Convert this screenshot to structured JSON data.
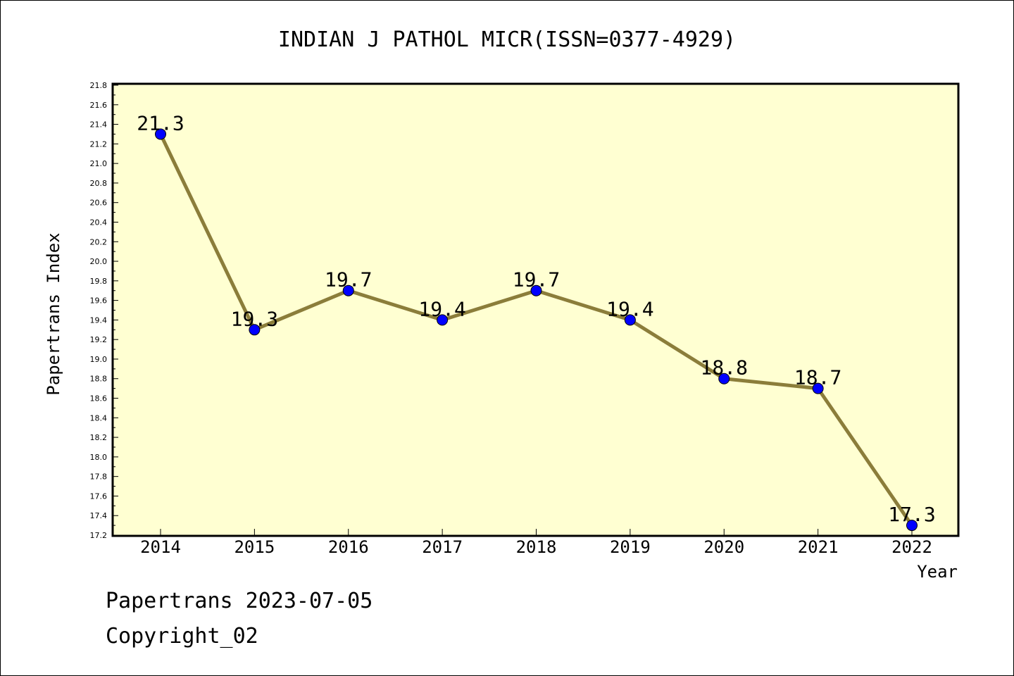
{
  "chart_data": {
    "type": "line",
    "title": "INDIAN J PATHOL MICR(ISSN=0377-4929)",
    "xlabel": "Year",
    "ylabel": "Papertrans Index",
    "categories": [
      "2014",
      "2015",
      "2016",
      "2017",
      "2018",
      "2019",
      "2020",
      "2021",
      "2022"
    ],
    "series": [
      {
        "values": [
          21.3,
          19.3,
          19.7,
          19.4,
          19.7,
          19.4,
          18.8,
          18.7,
          17.3
        ],
        "labels": [
          "21.3",
          "19.3",
          "19.7",
          "19.4",
          "19.7",
          "19.4",
          "18.8",
          "18.7",
          "17.3"
        ]
      }
    ],
    "ylim": [
      17.2,
      21.8
    ],
    "yticks": [
      "17.2",
      "17.4",
      "17.6",
      "17.8",
      "18.0",
      "18.2",
      "18.4",
      "18.6",
      "18.8",
      "19.0",
      "19.2",
      "19.4",
      "19.6",
      "19.8",
      "20.0",
      "20.2",
      "20.4",
      "20.6",
      "20.8",
      "21.0",
      "21.2",
      "21.4",
      "21.6",
      "21.8"
    ],
    "grid": false,
    "colors": {
      "plot_background": "#ffffd2",
      "line": "#8b7d3a",
      "marker": "#0000ff"
    }
  },
  "footer": {
    "line1": "Papertrans 2023-07-05",
    "line2": "Copyright_02"
  }
}
